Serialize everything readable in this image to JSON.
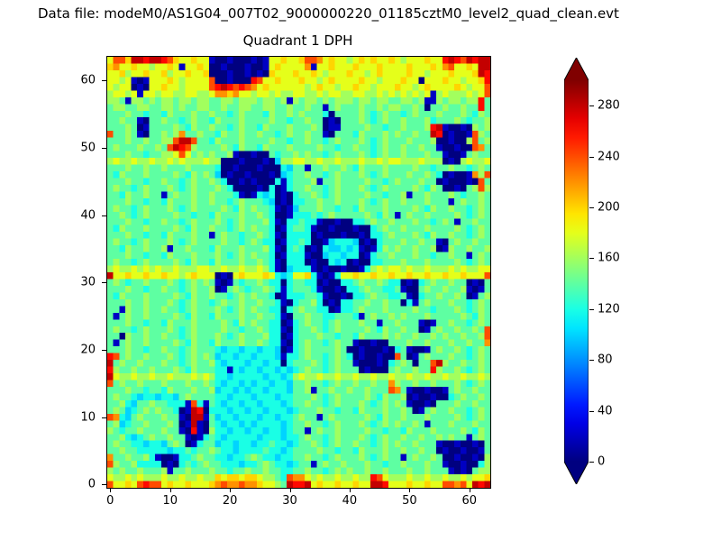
{
  "figure": {
    "data_file_label": "Data file: modeM0/AS1G04_007T02_9000000220_01185cztM0_level2_quad_clean.evt",
    "title": "Quadrant 1 DPH"
  },
  "colors": {
    "text": "#000000",
    "background": "#ffffff"
  },
  "chart_data": {
    "type": "heatmap",
    "title": "Quadrant 1 DPH",
    "grid_size": [
      64,
      64
    ],
    "xlim": [
      -0.5,
      63.5
    ],
    "ylim": [
      -0.5,
      63.5
    ],
    "x_ticks": [
      0,
      10,
      20,
      30,
      40,
      50,
      60
    ],
    "y_ticks": [
      0,
      10,
      20,
      30,
      40,
      50,
      60
    ],
    "colormap": "jet",
    "vmin": 0,
    "vmax": 300,
    "colorbar_ticks": [
      0,
      40,
      80,
      120,
      160,
      200,
      240,
      280
    ],
    "colorbar_extend": "both",
    "value_scale": 20,
    "rows_order": "top-to-bottom (first row is detector y=63, last row is y=0); each hex digit times value_scale gives counts",
    "values_hex_rows": [
      "9CCAEEDEEDCA99A99100100010199A99ACCB9A9989A9A99A98999A99DEDCEDEE",
      "AB99A99899A9199A900100010019A9999B199A999A999A9999A999A9BC99A9EE",
      "99A899A99A899A99A0001001010A999A99A98999A9989A9999A998999A999AED",
      "9989101999A989999C001000DC99A999A9989A9999A998999A990999A99899AD",
      "989901099A9989999CDEDCDCB9A99999989A99899A998999A9989A9999A9899C",
      "899891998998899889BBAB998998988998898998899889898989891 89888989C",
      "8871887878878878877887888788781878878788878878877887811 8788788D",
      "7887788778878778877877887788778778771787778778788778707 7877877D",
      "7778776776877787787767877768778787776077778767877678777877787687",
      "7787710778776787768777877778776778770107778767877877786777876778",
      "7778701777787687787767877687778777870117777877677877 78DE10010878",
      "C77871077878B778776877877877678778771077768777878778 77ED01001C87",
      "77787787788CEEC7768777877778776778776787778767877787 778001008C78",
      "7877787787CEDC877778768776877787777877677877678778778 77100100CB7",
      "777877677889C97878778100100767787877678777876787787778 7710017877",
      "8988988988989888988000100010588998898898889889899888988 801089889",
      "7778778778777877776001000100065771778778768777877778776 778776787",
      "7687778777787687875010010001056778776787778767877787787601001B8C",
      "7778776778776787787600101000616777817787777877678777877 0100010C7",
      "787767877787678777876000010601677877678777876787777876870 01078C8",
      "7768778771787787787776101656010677876787777877677817787778 767787",
      "7778776776877787787767877765010667787787778767877877787771787787",
      "7877678777876787777876878776101577787767768777877778768778776787",
      "7787678777787767768777877876001666767877777876871787787777876787",
      "7778776778776787778767877786106676610010066787787778776787177877",
      "7687778777787687787767878776016776100100010067877877787777876787",
      "7778776776877787717877677876106666010001001066787778768778776787",
      "7877678777876787777877678766016676001566650106777877877107877877",
      "7768778778177877768777877786106760106556561016878778778018778778",
      "7778776776877787778767878776016661005665660167787778776778771787",
      "7877678777787687768777877876106660100656010066777877787777876787",
      "8988989898898889988988988986105666101001001689899898898889898899",
      "E99A99A99A9989A9990109A999A965699A6101699A99A99A99A99A99A99A999C",
      "7876778777876787871017677876606776601006678778766010678778770107",
      "7778776778776787780178767787616777610010667877667100787787781017",
      "7687778777787687787767878776016667761001066787766710677877870178",
      "7778778777876787767877877877610677860106677877877061787778776787",
      "7718778778776787778767878776606787766016678777877778776777876787",
      "7178778777787687768777877877610778776677761787787877787777787687",
      "7778776776877787777876878776601678776787778771778777101778776787",
      "7877678777876787777877677876610677876787777876877877017 87787787C",
      "7708778778776787778767877786601677787767768777878778778 78778778C",
      "7178778777787687768777877876610678776787710010077787787 77877877B",
      "7778776778776787776566566566501678777787001000106710017 877876787",
      "DC78778777876787875665665666516678776787601001 00C7017877787 76787",
      "E787787778776787786566656656606777876787710001 06787077CE87787787",
      "D877877877787687776616566566565678776787770100 07877877D877876787",
      "E988988988988898986656666656656898898898898898898898898898898898",
      "C787787778777877876566565665665778776787787787 7B8778778777876787",
      "7778776776877787785665656656665778177877877877 7CB710010017877877",
      "7877656656657877776656665666566777876787777876877801001006787787",
      "77865778776661C61765665665666567787767877787678787100107778 77877",
      "78756787877601ED066656656656665677787767768777877870178778776787",
      "CB657877787710EE175665666566566787717877777876877877787777876787",
      "78567787778701E107656656566665677877678777876787877871777877 7877",
      "87677877787710D1086656656656656771787787777877677687778777787687",
      "7786567877877101676566666566656678776787778767877877877878771787",
      "7877665665787016775665665667665677876787787767878778777100100107",
      "7787766666566767787665666676656777787767768777877877877010010017",
      "B778778610016678776656678766566778776787778767877178778700100108",
      "C877866660106767877666566787665677178778777877677877787710010068",
      "8787787778177877787767787787766778776787877877877787787771010788",
      "9889898889889889 88A9AA9AA98876CBB98988988988DC98889889889889899A",
      "C99A9CDCC9A99A999ABCBBCBBA9987EDDE9A99A99A99EED999A99A99CCBC9EDE"
    ]
  }
}
